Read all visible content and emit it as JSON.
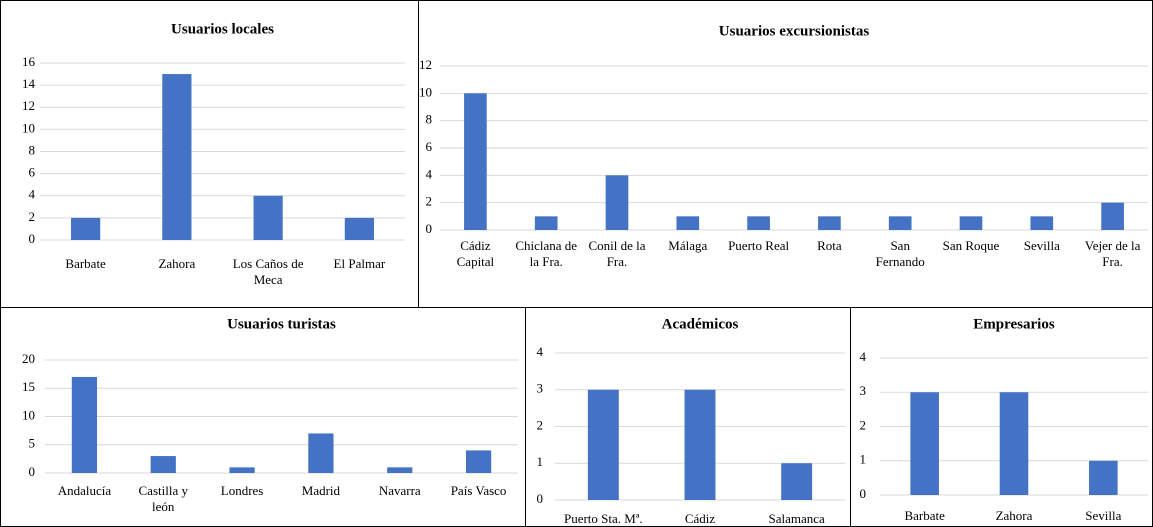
{
  "chart_data": [
    {
      "type": "bar",
      "title": "Usuarios locales",
      "categories": [
        "Barbate",
        "Zahora",
        "Los Caños de Meca",
        "El Palmar"
      ],
      "values": [
        2,
        15,
        4,
        2
      ],
      "color": "#4472c4",
      "ylim": [
        0,
        16
      ],
      "yticks": [
        0,
        2,
        4,
        6,
        8,
        10,
        12,
        14,
        16
      ],
      "grid": true
    },
    {
      "type": "bar",
      "title": "Usuarios excursionistas",
      "categories": [
        "Cádiz Capital",
        "Chiclana de la Fra.",
        "Conil de la Fra.",
        "Málaga",
        "Puerto Real",
        "Rota",
        "San Fernando",
        "San Roque",
        "Sevilla",
        "Vejer de la Fra."
      ],
      "values": [
        10,
        1,
        4,
        1,
        1,
        1,
        1,
        1,
        1,
        2
      ],
      "color": "#4472c4",
      "ylim": [
        0,
        12
      ],
      "yticks": [
        0,
        2,
        4,
        6,
        8,
        10,
        12
      ],
      "grid": true
    },
    {
      "type": "bar",
      "title": "Usuarios turistas",
      "categories": [
        "Andalucía",
        "Castilla y león",
        "Londres",
        "Madrid",
        "Navarra",
        "País Vasco"
      ],
      "values": [
        17,
        3,
        1,
        7,
        1,
        4
      ],
      "color": "#4472c4",
      "ylim": [
        0,
        20
      ],
      "yticks": [
        0,
        5,
        10,
        15,
        20
      ],
      "grid": true
    },
    {
      "type": "bar",
      "title": "Académicos",
      "categories": [
        "Puerto Sta. Mª.",
        "Cádiz",
        "Salamanca"
      ],
      "values": [
        3,
        3,
        1
      ],
      "color": "#4472c4",
      "ylim": [
        0,
        4
      ],
      "yticks": [
        0,
        1,
        2,
        3,
        4
      ],
      "grid": true
    },
    {
      "type": "bar",
      "title": "Empresarios",
      "categories": [
        "Barbate",
        "Zahora",
        "Sevilla"
      ],
      "values": [
        3,
        3,
        1
      ],
      "color": "#4472c4",
      "ylim": [
        0,
        4
      ],
      "yticks": [
        0,
        1,
        2,
        3,
        4
      ],
      "grid": true
    }
  ]
}
